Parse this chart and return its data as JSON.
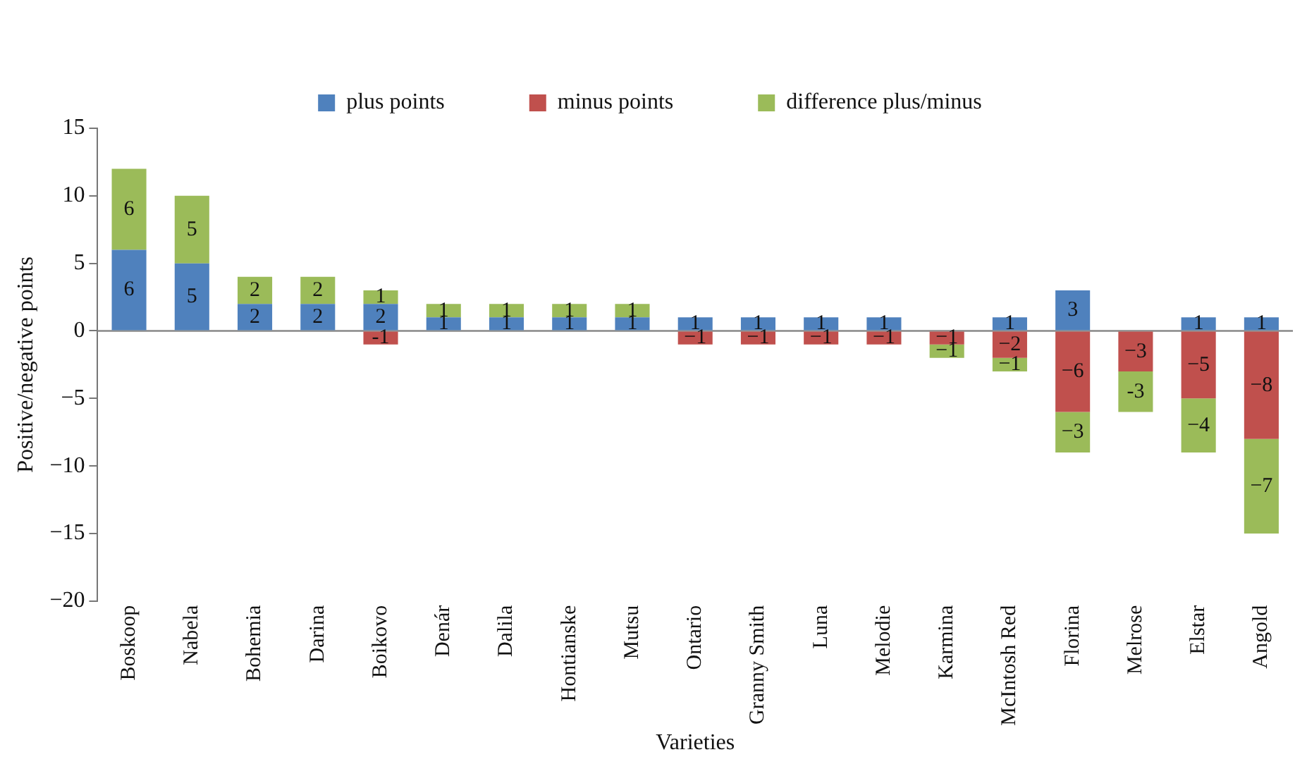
{
  "chart_data": {
    "type": "bar",
    "stacked": true,
    "xlabel": "Varieties",
    "ylabel": "Positive/negative points",
    "categories": [
      "Boskoop",
      "Nabela",
      "Bohemia",
      "Darina",
      "Boikovo",
      "Denár",
      "Dalila",
      "Hontianske",
      "Mutsu",
      "Ontario",
      "Granny Smith",
      "Luna",
      "Melodie",
      "Karmina",
      "McIntosh Red",
      "Florina",
      "Melrose",
      "Elstar",
      "Angold"
    ],
    "series": [
      {
        "name": "plus points",
        "color": "#4f81bd",
        "values": [
          6,
          5,
          2,
          2,
          2,
          1,
          1,
          1,
          1,
          1,
          1,
          1,
          1,
          0,
          1,
          3,
          0,
          1,
          1
        ],
        "value_labels": [
          "6",
          "5",
          "2",
          "2",
          "2",
          "1",
          "1",
          "1",
          "1",
          "1",
          "1",
          "1",
          "1",
          null,
          "1",
          "3",
          null,
          "1",
          "1"
        ]
      },
      {
        "name": "minus points",
        "color": "#c0504d",
        "values": [
          0,
          0,
          0,
          0,
          -1,
          0,
          0,
          0,
          0,
          -1,
          -1,
          -1,
          -1,
          -1,
          -2,
          -6,
          -3,
          -5,
          -8
        ],
        "value_labels": [
          null,
          null,
          null,
          null,
          "-1",
          null,
          null,
          null,
          null,
          "−1",
          "−1",
          "−1",
          "−1",
          "−1",
          "−2",
          "−6",
          "−3",
          "−5",
          "−8"
        ]
      },
      {
        "name": "difference plus/minus",
        "color": "#9bbb59",
        "values": [
          6,
          5,
          2,
          2,
          1,
          1,
          1,
          1,
          1,
          0,
          0,
          0,
          0,
          -1,
          -1,
          -3,
          -3,
          -4,
          -7
        ],
        "value_labels": [
          "6",
          "5",
          "2",
          "2",
          "1",
          "1",
          "1",
          "1",
          "1",
          null,
          null,
          null,
          null,
          "−1",
          "−1",
          "−3",
          "-3",
          "−4",
          "−7"
        ]
      }
    ],
    "ylim": [
      -20,
      15
    ],
    "yticks": [
      {
        "value": -20,
        "label": "−20"
      },
      {
        "value": -15,
        "label": "−15"
      },
      {
        "value": -10,
        "label": "−10"
      },
      {
        "value": -5,
        "label": "−5"
      },
      0,
      5,
      10,
      15
    ],
    "ref_lines": [
      {
        "axis": "y",
        "value": 0,
        "color": "#888888"
      }
    ],
    "grid": false,
    "legend": "top"
  }
}
